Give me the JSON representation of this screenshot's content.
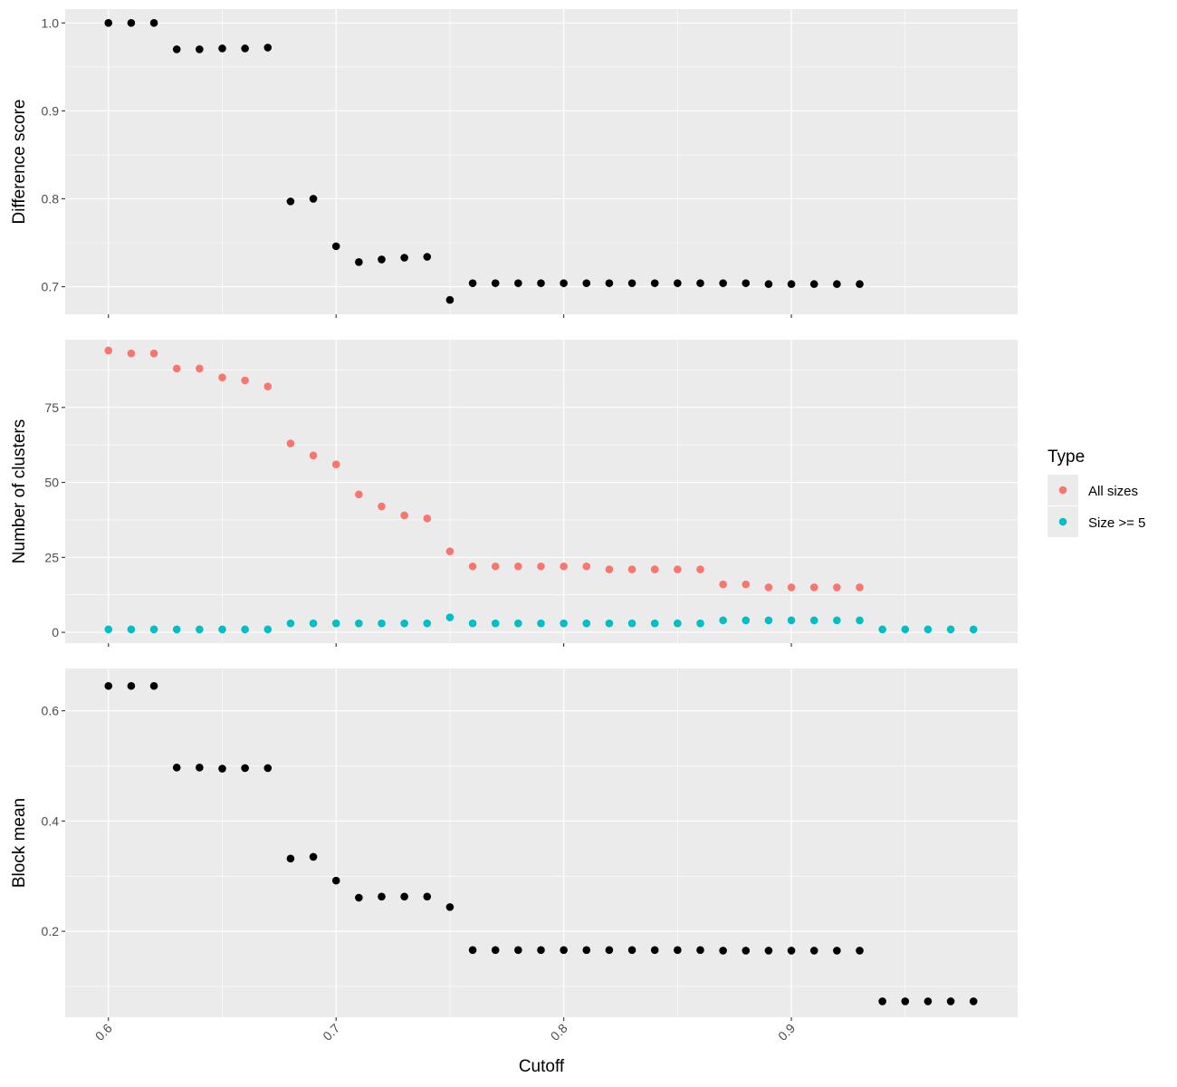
{
  "chart_data": {
    "type": "scatter",
    "x_axis": {
      "label": "Cutoff",
      "range": [
        0.581,
        0.9994
      ],
      "ticks": [
        0.6,
        0.7,
        0.8,
        0.9
      ],
      "tick_labels": [
        "0.6",
        "0.7",
        "0.8",
        "0.9"
      ]
    },
    "grid": true,
    "legend": {
      "title": "Type",
      "placement": "right",
      "entries": [
        {
          "label": "All sizes",
          "color": "#F8766D"
        },
        {
          "label": "Size >= 5",
          "color": "#00BFC4"
        }
      ]
    },
    "panels": [
      {
        "ylabel": "Difference score",
        "ylim": [
          0.6686,
          1.0158
        ],
        "yticks": [
          0.7,
          0.8,
          0.9,
          1.0
        ],
        "ytick_labels": [
          "0.7",
          "0.8",
          "0.9",
          "1.0"
        ],
        "series": [
          {
            "color": "#000000",
            "points": [
              [
                0.6,
                1.0
              ],
              [
                0.61,
                1.0
              ],
              [
                0.62,
                1.0
              ],
              [
                0.63,
                0.97
              ],
              [
                0.64,
                0.97
              ],
              [
                0.65,
                0.971
              ],
              [
                0.66,
                0.971
              ],
              [
                0.67,
                0.972
              ],
              [
                0.68,
                0.797
              ],
              [
                0.69,
                0.8
              ],
              [
                0.7,
                0.746
              ],
              [
                0.71,
                0.728
              ],
              [
                0.72,
                0.731
              ],
              [
                0.73,
                0.733
              ],
              [
                0.74,
                0.734
              ],
              [
                0.75,
                0.685
              ],
              [
                0.76,
                0.704
              ],
              [
                0.77,
                0.704
              ],
              [
                0.78,
                0.704
              ],
              [
                0.79,
                0.704
              ],
              [
                0.8,
                0.704
              ],
              [
                0.81,
                0.704
              ],
              [
                0.82,
                0.704
              ],
              [
                0.83,
                0.704
              ],
              [
                0.84,
                0.704
              ],
              [
                0.85,
                0.704
              ],
              [
                0.86,
                0.704
              ],
              [
                0.87,
                0.704
              ],
              [
                0.88,
                0.704
              ],
              [
                0.89,
                0.703
              ],
              [
                0.9,
                0.703
              ],
              [
                0.91,
                0.703
              ],
              [
                0.92,
                0.703
              ],
              [
                0.93,
                0.703
              ]
            ]
          }
        ]
      },
      {
        "ylabel": "Number of clusters",
        "ylim": [
          -3.6,
          97.6
        ],
        "yticks": [
          0,
          25,
          50,
          75
        ],
        "ytick_labels": [
          "0",
          "25",
          "50",
          "75"
        ],
        "series": [
          {
            "name": "All sizes",
            "color": "#F8766D",
            "points": [
              [
                0.6,
                94
              ],
              [
                0.61,
                93
              ],
              [
                0.62,
                93
              ],
              [
                0.63,
                88
              ],
              [
                0.64,
                88
              ],
              [
                0.65,
                85
              ],
              [
                0.66,
                84
              ],
              [
                0.67,
                82
              ],
              [
                0.68,
                63
              ],
              [
                0.69,
                59
              ],
              [
                0.7,
                56
              ],
              [
                0.71,
                46
              ],
              [
                0.72,
                42
              ],
              [
                0.73,
                39
              ],
              [
                0.74,
                38
              ],
              [
                0.75,
                27
              ],
              [
                0.76,
                22
              ],
              [
                0.77,
                22
              ],
              [
                0.78,
                22
              ],
              [
                0.79,
                22
              ],
              [
                0.8,
                22
              ],
              [
                0.81,
                22
              ],
              [
                0.82,
                21
              ],
              [
                0.83,
                21
              ],
              [
                0.84,
                21
              ],
              [
                0.85,
                21
              ],
              [
                0.86,
                21
              ],
              [
                0.87,
                16
              ],
              [
                0.88,
                16
              ],
              [
                0.89,
                15
              ],
              [
                0.9,
                15
              ],
              [
                0.91,
                15
              ],
              [
                0.92,
                15
              ],
              [
                0.93,
                15
              ]
            ]
          },
          {
            "name": "Size >= 5",
            "color": "#00BFC4",
            "points": [
              [
                0.6,
                1
              ],
              [
                0.61,
                1
              ],
              [
                0.62,
                1
              ],
              [
                0.63,
                1
              ],
              [
                0.64,
                1
              ],
              [
                0.65,
                1
              ],
              [
                0.66,
                1
              ],
              [
                0.67,
                1
              ],
              [
                0.68,
                3
              ],
              [
                0.69,
                3
              ],
              [
                0.7,
                3
              ],
              [
                0.71,
                3
              ],
              [
                0.72,
                3
              ],
              [
                0.73,
                3
              ],
              [
                0.74,
                3
              ],
              [
                0.75,
                5
              ],
              [
                0.76,
                3
              ],
              [
                0.77,
                3
              ],
              [
                0.78,
                3
              ],
              [
                0.79,
                3
              ],
              [
                0.8,
                3
              ],
              [
                0.81,
                3
              ],
              [
                0.82,
                3
              ],
              [
                0.83,
                3
              ],
              [
                0.84,
                3
              ],
              [
                0.85,
                3
              ],
              [
                0.86,
                3
              ],
              [
                0.87,
                4
              ],
              [
                0.88,
                4
              ],
              [
                0.89,
                4
              ],
              [
                0.9,
                4
              ],
              [
                0.91,
                4
              ],
              [
                0.92,
                4
              ],
              [
                0.93,
                4
              ],
              [
                0.94,
                1
              ],
              [
                0.95,
                1
              ],
              [
                0.96,
                1
              ],
              [
                0.97,
                1
              ],
              [
                0.98,
                1
              ]
            ]
          }
        ]
      },
      {
        "ylabel": "Block mean",
        "ylim": [
          0.0442,
          0.6766
        ],
        "yticks": [
          0.2,
          0.4,
          0.6
        ],
        "ytick_labels": [
          "0.2",
          "0.4",
          "0.6"
        ],
        "series": [
          {
            "color": "#000000",
            "points": [
              [
                0.6,
                0.645
              ],
              [
                0.61,
                0.645
              ],
              [
                0.62,
                0.645
              ],
              [
                0.63,
                0.497
              ],
              [
                0.64,
                0.497
              ],
              [
                0.65,
                0.495
              ],
              [
                0.66,
                0.496
              ],
              [
                0.67,
                0.496
              ],
              [
                0.68,
                0.332
              ],
              [
                0.69,
                0.335
              ],
              [
                0.7,
                0.292
              ],
              [
                0.71,
                0.261
              ],
              [
                0.72,
                0.263
              ],
              [
                0.73,
                0.263
              ],
              [
                0.74,
                0.263
              ],
              [
                0.75,
                0.244
              ],
              [
                0.76,
                0.166
              ],
              [
                0.77,
                0.166
              ],
              [
                0.78,
                0.166
              ],
              [
                0.79,
                0.166
              ],
              [
                0.8,
                0.166
              ],
              [
                0.81,
                0.166
              ],
              [
                0.82,
                0.166
              ],
              [
                0.83,
                0.166
              ],
              [
                0.84,
                0.166
              ],
              [
                0.85,
                0.166
              ],
              [
                0.86,
                0.166
              ],
              [
                0.87,
                0.165
              ],
              [
                0.88,
                0.165
              ],
              [
                0.89,
                0.165
              ],
              [
                0.9,
                0.165
              ],
              [
                0.91,
                0.165
              ],
              [
                0.92,
                0.165
              ],
              [
                0.93,
                0.165
              ],
              [
                0.94,
                0.073
              ],
              [
                0.95,
                0.073
              ],
              [
                0.96,
                0.073
              ],
              [
                0.97,
                0.073
              ],
              [
                0.98,
                0.073
              ]
            ]
          }
        ]
      }
    ]
  }
}
